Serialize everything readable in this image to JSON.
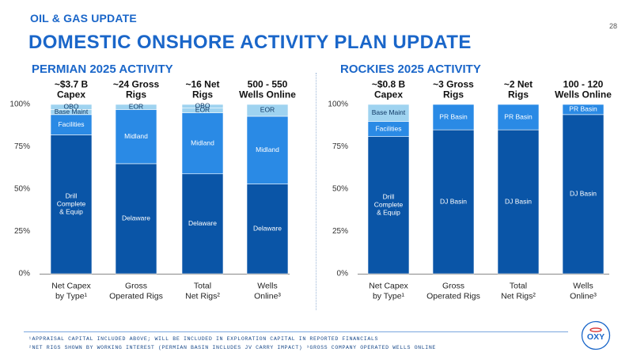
{
  "header": {
    "kicker": "OIL & GAS UPDATE",
    "title": "DOMESTIC ONSHORE ACTIVITY PLAN UPDATE",
    "page_number": "28"
  },
  "sections": {
    "left": "PERMIAN 2025 ACTIVITY",
    "right": "ROCKIES 2025 ACTIVITY"
  },
  "colors": {
    "dark": "#0a55a7",
    "mid": "#2a8ae5",
    "light": "#9fd3f0",
    "title": "#1a66c9"
  },
  "footnotes": {
    "line1": "¹APPRAISAL CAPITAL INCLUDED ABOVE; WILL BE INCLUDED IN EXPLORATION CAPITAL IN REPORTED FINANCIALS",
    "line2": "²NET RIGS SHOWN BY WORKING INTEREST (PERMIAN BASIN INCLUDES JV CARRY IMPACT)  ³GROSS COMPANY OPERATED WELLS ONLINE"
  },
  "logo": {
    "text": "OXY"
  },
  "chart_data": [
    {
      "type": "bar",
      "stacked": true,
      "percent_axis": true,
      "ylim": [
        0,
        100
      ],
      "yticks": [
        "0%",
        "25%",
        "50%",
        "75%",
        "100%"
      ],
      "categories": [
        {
          "header": [
            "~$3.7 B",
            "Capex"
          ],
          "axis": [
            "Net Capex",
            "by Type¹"
          ]
        },
        {
          "header": [
            "~24 Gross",
            "Rigs"
          ],
          "axis": [
            "Gross",
            "Operated Rigs"
          ]
        },
        {
          "header": [
            "~16 Net",
            "Rigs"
          ],
          "axis": [
            "Total",
            "Net Rigs²"
          ]
        },
        {
          "header": [
            "500 - 550",
            "Wells Online"
          ],
          "axis": [
            "Wells",
            "Online³"
          ]
        }
      ],
      "bars": [
        [
          {
            "label": [
              "Drill",
              "Complete",
              "& Equip"
            ],
            "value": 82,
            "color": "dark"
          },
          {
            "label": [
              "Facilities"
            ],
            "value": 12,
            "color": "mid"
          },
          {
            "label": [
              "Base Maint"
            ],
            "value": 3,
            "color": "light"
          },
          {
            "label": [
              "OBO"
            ],
            "value": 3,
            "color": "light"
          }
        ],
        [
          {
            "label": [
              "Delaware"
            ],
            "value": 65,
            "color": "dark"
          },
          {
            "label": [
              "Midland"
            ],
            "value": 32,
            "color": "mid"
          },
          {
            "label": [
              "EOR"
            ],
            "value": 3,
            "color": "light"
          }
        ],
        [
          {
            "label": [
              "Delaware"
            ],
            "value": 59,
            "color": "dark"
          },
          {
            "label": [
              "Midland"
            ],
            "value": 36,
            "color": "mid"
          },
          {
            "label": [
              "EOR"
            ],
            "value": 3,
            "color": "light"
          },
          {
            "label": [
              "OBO"
            ],
            "value": 2,
            "color": "light"
          }
        ],
        [
          {
            "label": [
              "Delaware"
            ],
            "value": 53,
            "color": "dark"
          },
          {
            "label": [
              "Midland"
            ],
            "value": 40,
            "color": "mid"
          },
          {
            "label": [
              "EOR"
            ],
            "value": 7,
            "color": "light"
          }
        ]
      ]
    },
    {
      "type": "bar",
      "stacked": true,
      "percent_axis": true,
      "ylim": [
        0,
        100
      ],
      "yticks": [
        "0%",
        "25%",
        "50%",
        "75%",
        "100%"
      ],
      "categories": [
        {
          "header": [
            "~$0.8 B",
            "Capex"
          ],
          "axis": [
            "Net Capex",
            "by Type¹"
          ]
        },
        {
          "header": [
            "~3 Gross",
            "Rigs"
          ],
          "axis": [
            "Gross",
            "Operated Rigs"
          ]
        },
        {
          "header": [
            "~2 Net",
            "Rigs"
          ],
          "axis": [
            "Total",
            "Net Rigs²"
          ]
        },
        {
          "header": [
            "100 - 120",
            "Wells Online"
          ],
          "axis": [
            "Wells",
            "Online³"
          ]
        }
      ],
      "bars": [
        [
          {
            "label": [
              "Drill",
              "Complete",
              "& Equip"
            ],
            "value": 81,
            "color": "dark"
          },
          {
            "label": [
              "Facilities"
            ],
            "value": 9,
            "color": "mid"
          },
          {
            "label": [
              "Base Maint"
            ],
            "value": 10,
            "color": "light"
          }
        ],
        [
          {
            "label": [
              "DJ Basin"
            ],
            "value": 85,
            "color": "dark"
          },
          {
            "label": [
              "PR Basin"
            ],
            "value": 15,
            "color": "mid"
          }
        ],
        [
          {
            "label": [
              "DJ Basin"
            ],
            "value": 85,
            "color": "dark"
          },
          {
            "label": [
              "PR Basin"
            ],
            "value": 15,
            "color": "mid"
          }
        ],
        [
          {
            "label": [
              "DJ Basin"
            ],
            "value": 94,
            "color": "dark"
          },
          {
            "label": [
              "PR Basin"
            ],
            "value": 6,
            "color": "mid"
          }
        ]
      ]
    }
  ]
}
